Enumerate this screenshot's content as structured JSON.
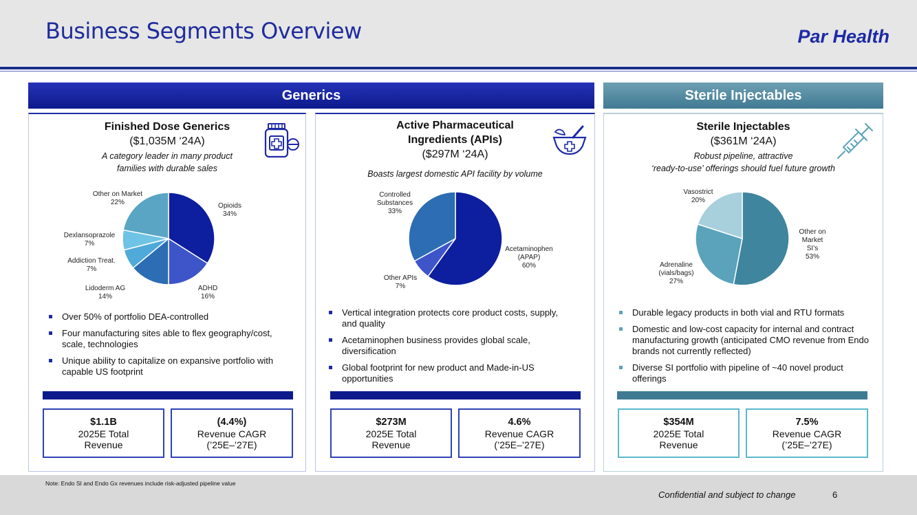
{
  "header": {
    "title": "Business Segments Overview",
    "brand": "Par Health"
  },
  "bands": {
    "generics": "Generics",
    "sterile": "Sterile Injectables"
  },
  "colors": {
    "navy": "#1d2aa6",
    "teal": "#3f7a93"
  },
  "panels": [
    {
      "title": "Finished Dose Generics",
      "value": "($1,035M ‘24A)",
      "subtitle_lines": [
        "A category leader in many product",
        "families with durable sales"
      ],
      "icon": "pill-bottle-icon",
      "bullets": [
        "Over 50% of portfolio DEA-controlled",
        "Four manufacturing sites able to flex geography/cost, scale, technologies",
        "Unique ability to capitalize on expansive portfolio with capable US footprint"
      ],
      "metrics": [
        {
          "value": "$1.1B",
          "line1": "2025E Total",
          "line2": "Revenue"
        },
        {
          "value": "(4.4%)",
          "line1": "Revenue CAGR",
          "line2": "(’25E–’27E)"
        }
      ]
    },
    {
      "title_lines": [
        "Active Pharmaceutical",
        "Ingredients (APIs)"
      ],
      "value": "($297M ‘24A)",
      "subtitle_lines": [
        "Boasts largest domestic API facility by volume"
      ],
      "icon": "mortar-pestle-icon",
      "bullets": [
        "Vertical integration protects core product costs, supply, and quality",
        "Acetaminophen business provides global scale, diversification",
        "Global footprint for new product and Made-in-US opportunities"
      ],
      "metrics": [
        {
          "value": "$273M",
          "line1": "2025E Total",
          "line2": "Revenue"
        },
        {
          "value": "4.6%",
          "line1": "Revenue CAGR",
          "line2": "(’25E–’27E)"
        }
      ]
    },
    {
      "title": "Sterile Injectables",
      "value": "($361M ‘24A)",
      "subtitle_lines": [
        "Robust pipeline, attractive",
        "‘ready-to-use’ offerings should fuel future growth"
      ],
      "icon": "syringe-icon",
      "bullets": [
        "Durable legacy products in both vial and RTU formats",
        "Domestic and low-cost capacity for internal and contract manufacturing growth (anticipated CMO revenue from Endo brands not currently reflected)",
        "Diverse SI portfolio with pipeline of ~40 novel product offerings"
      ],
      "metrics": [
        {
          "value": "$354M",
          "line1": "2025E Total",
          "line2": "Revenue"
        },
        {
          "value": "7.5%",
          "line1": "Revenue CAGR",
          "line2": "(’25E–’27E)"
        }
      ]
    }
  ],
  "chart_data": [
    {
      "type": "pie",
      "title": "Finished Dose Generics",
      "slices": [
        {
          "label": "Opioids",
          "value": 34,
          "pct": "34%",
          "color": "#0d1e9e"
        },
        {
          "label": "ADHD",
          "value": 16,
          "pct": "16%",
          "color": "#3d55c9"
        },
        {
          "label": "Lidoderm AG",
          "value": 14,
          "pct": "14%",
          "color": "#2c6db3"
        },
        {
          "label": "Addiction Treat.",
          "value": 7,
          "pct": "7%",
          "color": "#4fa9d9"
        },
        {
          "label": "Dexlansoprazole",
          "value": 7,
          "pct": "7%",
          "color": "#6fc3e4"
        },
        {
          "label": "Other on Market",
          "value": 22,
          "pct": "22%",
          "color": "#5aa5c4"
        }
      ]
    },
    {
      "type": "pie",
      "title": "Active Pharmaceutical Ingredients (APIs)",
      "slices": [
        {
          "label": "Acetaminophen (APAP)",
          "value": 60,
          "pct": "60%",
          "color": "#0d1e9e"
        },
        {
          "label": "Other APIs",
          "value": 7,
          "pct": "7%",
          "color": "#3d55c9"
        },
        {
          "label": "Controlled Substances",
          "value": 33,
          "pct": "33%",
          "color": "#2c6db3"
        }
      ]
    },
    {
      "type": "pie",
      "title": "Sterile Injectables",
      "slices": [
        {
          "label": "Other on Market SI’s",
          "value": 53,
          "pct": "53%",
          "color": "#3f859e"
        },
        {
          "label": "Adrenaline (vials/bags)",
          "value": 27,
          "pct": "27%",
          "color": "#5aa3bb"
        },
        {
          "label": "Vasostrict",
          "value": 20,
          "pct": "20%",
          "color": "#a7cfdc"
        }
      ]
    }
  ],
  "footer": {
    "note": "Note: Endo SI and Endo Gx revenues include risk-adjusted pipeline value",
    "confidential": "Confidential and subject to change",
    "page": "6"
  }
}
